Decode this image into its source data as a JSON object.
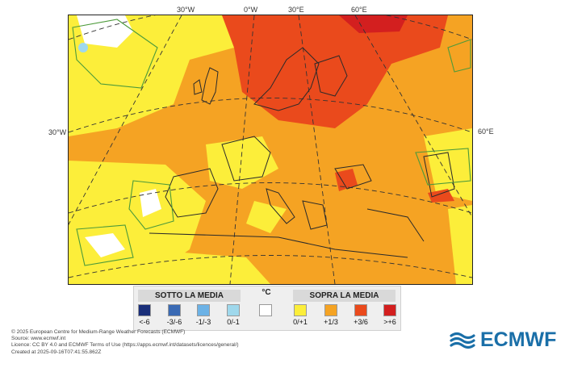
{
  "map": {
    "longitude_labels_top": [
      "30°W",
      "0°W",
      "30°E",
      "60°E"
    ],
    "longitude_label_left": "30°W",
    "longitude_label_right": "60°E"
  },
  "legend": {
    "below_title": "SOTTO LA MEDIA",
    "unit": "°C",
    "above_title": "SOPRA LA MEDIA",
    "classes": [
      {
        "label": "<-6",
        "color": "#1a2f7a"
      },
      {
        "label": "-3/-6",
        "color": "#3a6ab4"
      },
      {
        "label": "-1/-3",
        "color": "#6cb2e6"
      },
      {
        "label": "0/-1",
        "color": "#9fd8ec"
      },
      {
        "label": "",
        "color": "#ffffff"
      },
      {
        "label": "0/+1",
        "color": "#fcee3a"
      },
      {
        "label": "+1/3",
        "color": "#f5a323"
      },
      {
        "label": "+3/6",
        "color": "#ea4a1c"
      },
      {
        "label": ">+6",
        "color": "#d31f1f"
      }
    ]
  },
  "credits": {
    "line1": "© 2025 European Centre for Medium-Range Weather Forecasts (ECMWF)",
    "line2": "Source: www.ecmwf.int",
    "line3": "Licence: CC BY 4.0 and ECMWF Terms of Use (https://apps.ecmwf.int/datasets/licences/general/)",
    "line4": "Created at 2025-09-16T07:41:55.862Z"
  },
  "brand": {
    "name": "ECMWF",
    "color": "#1a6fa8"
  }
}
